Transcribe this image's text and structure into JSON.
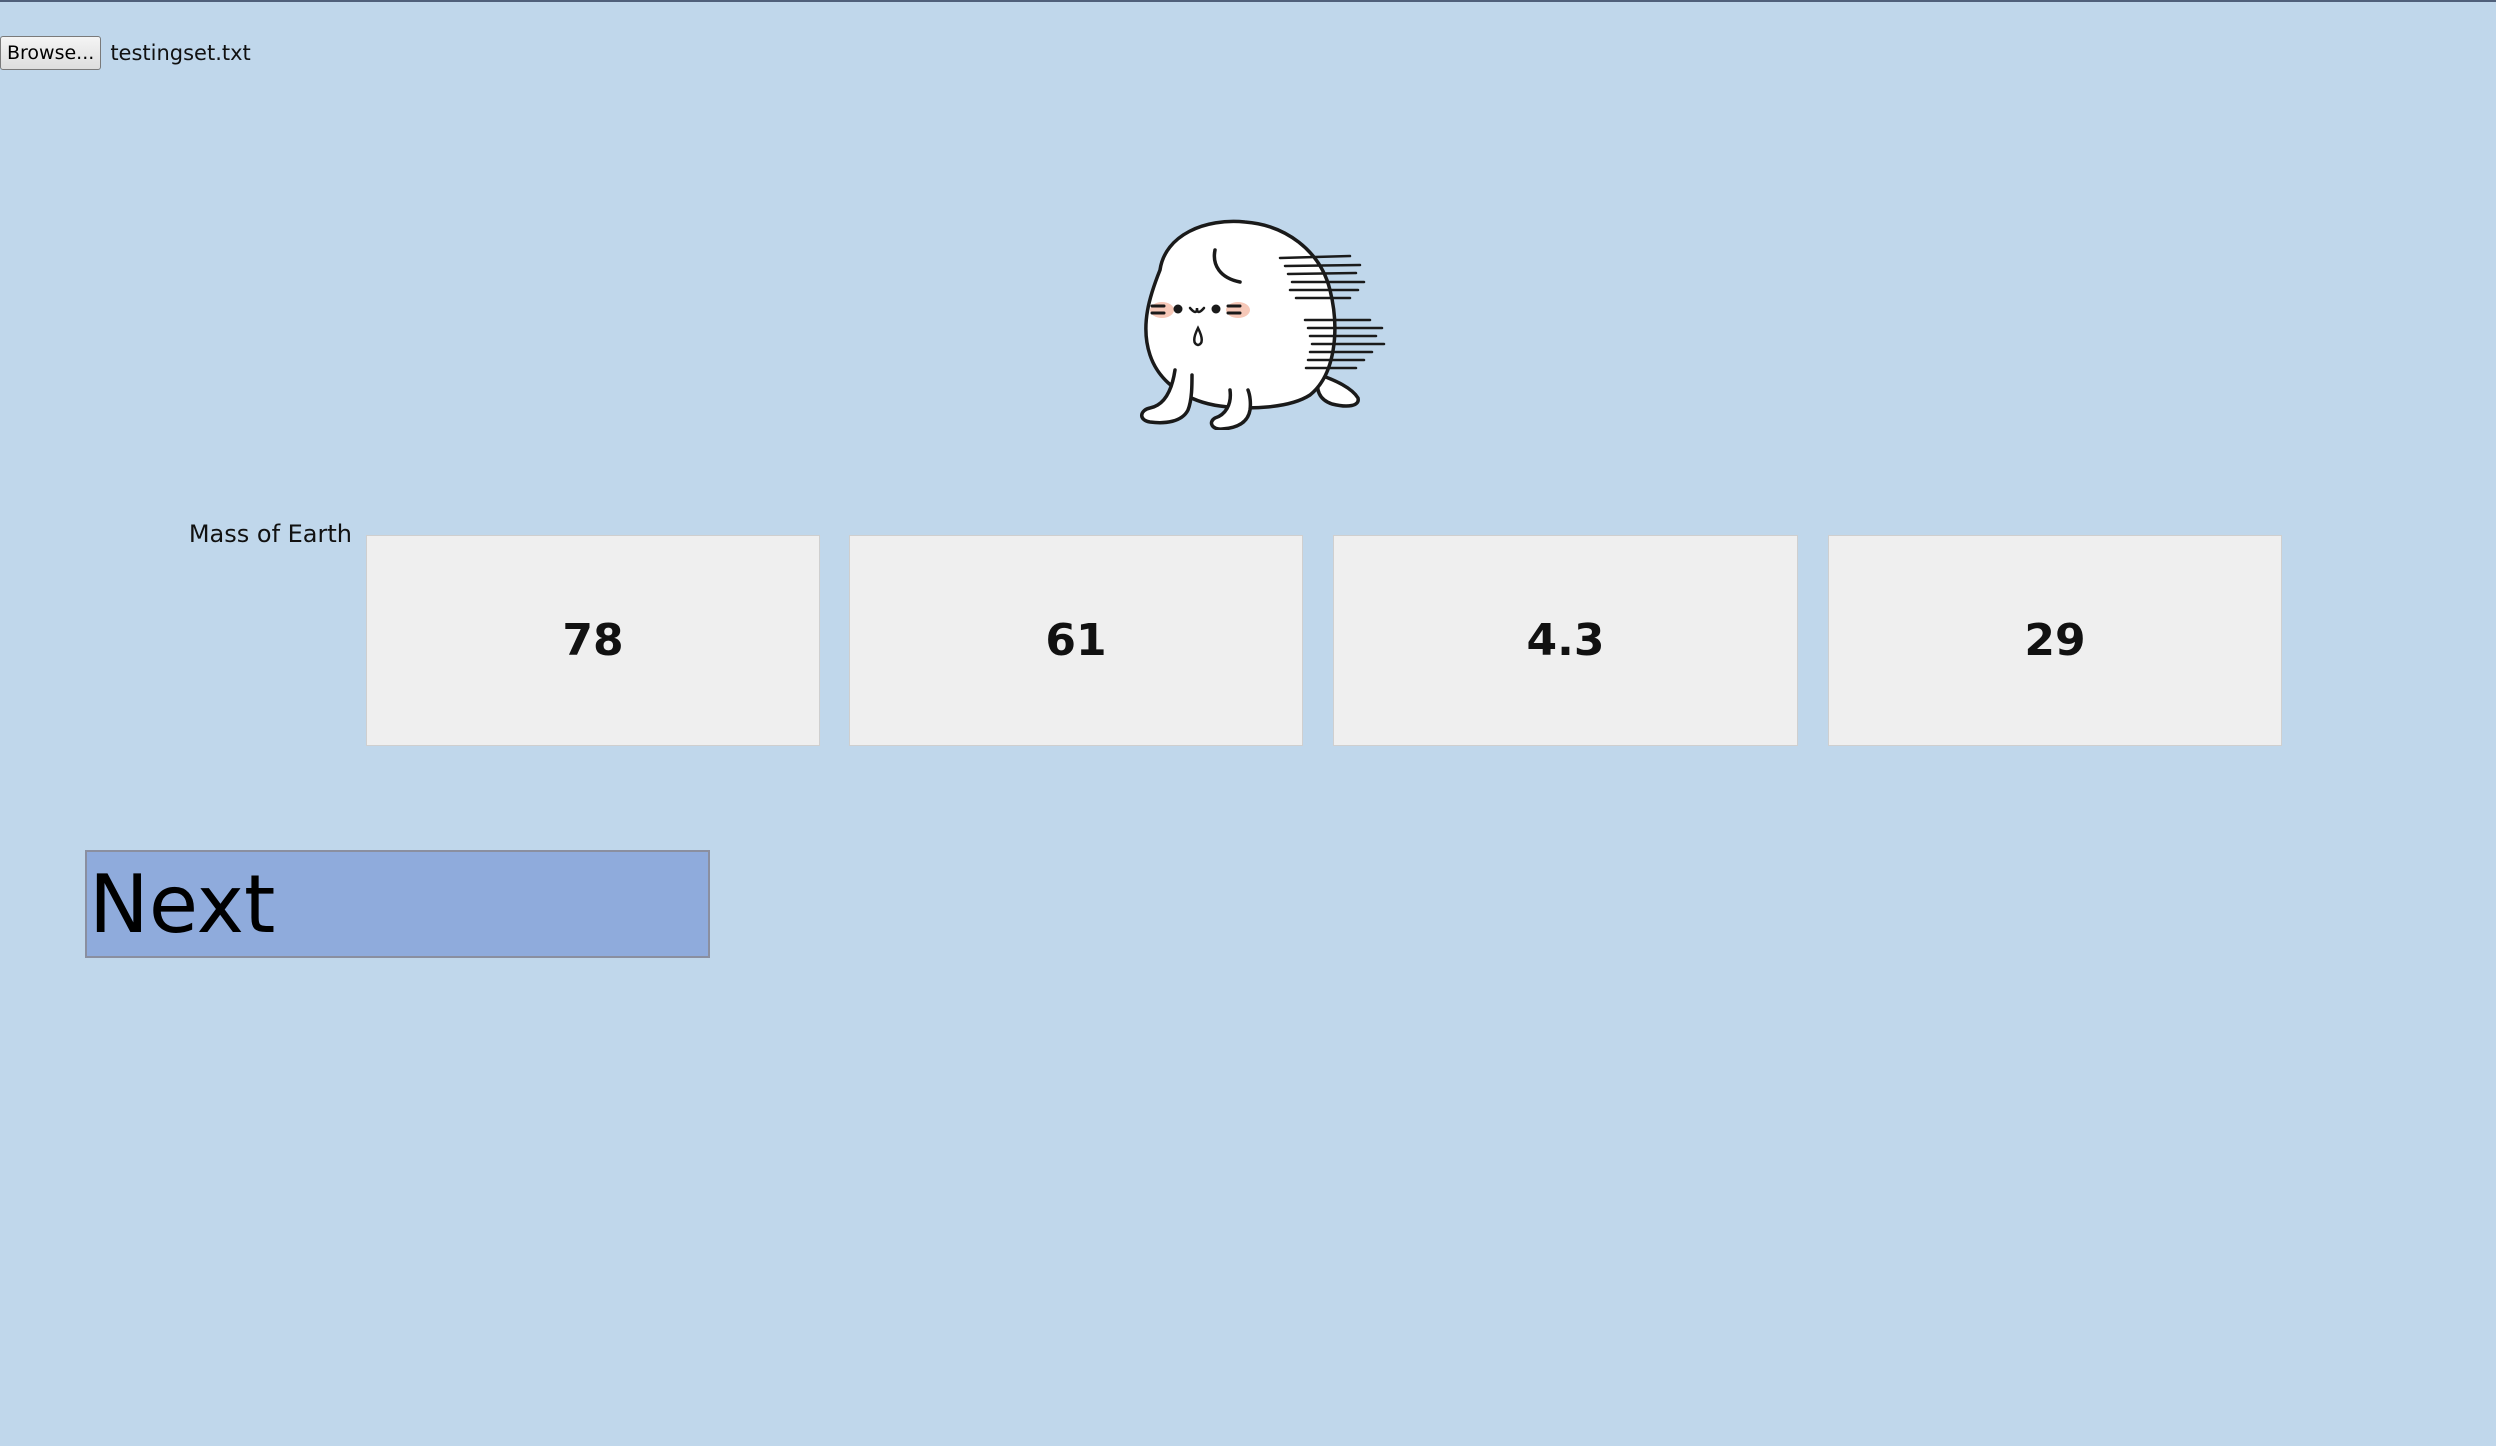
{
  "file_input": {
    "button_label": "Browse...",
    "file_name": "testingset.txt"
  },
  "mascot": {
    "icon": "crying-seal-mascot-icon"
  },
  "question": {
    "label": "Mass of Earth"
  },
  "options": [
    {
      "label": "78"
    },
    {
      "label": "61"
    },
    {
      "label": "4.3"
    },
    {
      "label": "29"
    }
  ],
  "next_button": {
    "label": "Next"
  },
  "colors": {
    "background": "#c0d7eb",
    "option_background": "#efefef",
    "next_button": "#8fabdc"
  }
}
